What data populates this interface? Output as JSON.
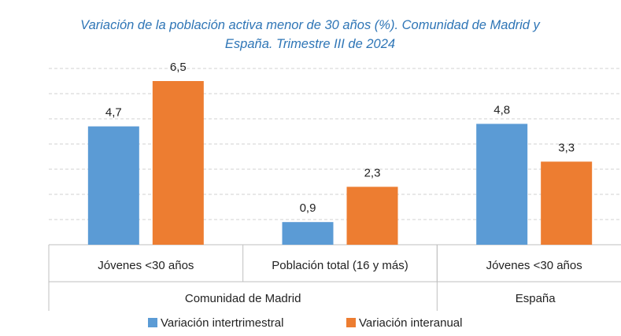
{
  "chart_data": {
    "type": "bar",
    "title": "Variación de la población activa menor de 30 años (%). Comunidad de Madrid y España. Trimestre III de 2024",
    "categories": [
      "Jóvenes <30 años",
      "Población total (16 y más)",
      "Jóvenes <30 años"
    ],
    "groups": [
      {
        "name": "Comunidad de Madrid",
        "size": 2
      },
      {
        "name": "España",
        "size": 1
      }
    ],
    "series": [
      {
        "name": "Variación intertrimestral",
        "color": "#5b9bd5",
        "values": [
          4.7,
          0.9,
          4.8
        ],
        "value_labels": [
          "4,7",
          "0,9",
          "4,8"
        ]
      },
      {
        "name": "Variación interanual",
        "color": "#ed7d31",
        "values": [
          6.5,
          2.3,
          3.3
        ],
        "value_labels": [
          "6,5",
          "2,3",
          "3,3"
        ]
      }
    ],
    "ylim": [
      0,
      7
    ],
    "yticks": [
      0,
      1,
      2,
      3,
      4,
      5,
      6,
      7
    ],
    "grid": true,
    "legend": "bottom"
  }
}
